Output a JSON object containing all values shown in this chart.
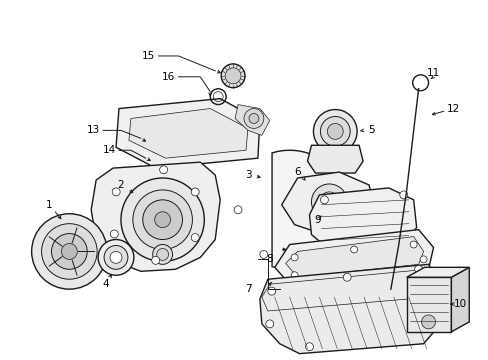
{
  "bg_color": "#ffffff",
  "line_color": "#1a1a1a",
  "label_color": "#000000",
  "fig_width": 4.89,
  "fig_height": 3.6,
  "dpi": 100,
  "label_fontsize": 7.5
}
